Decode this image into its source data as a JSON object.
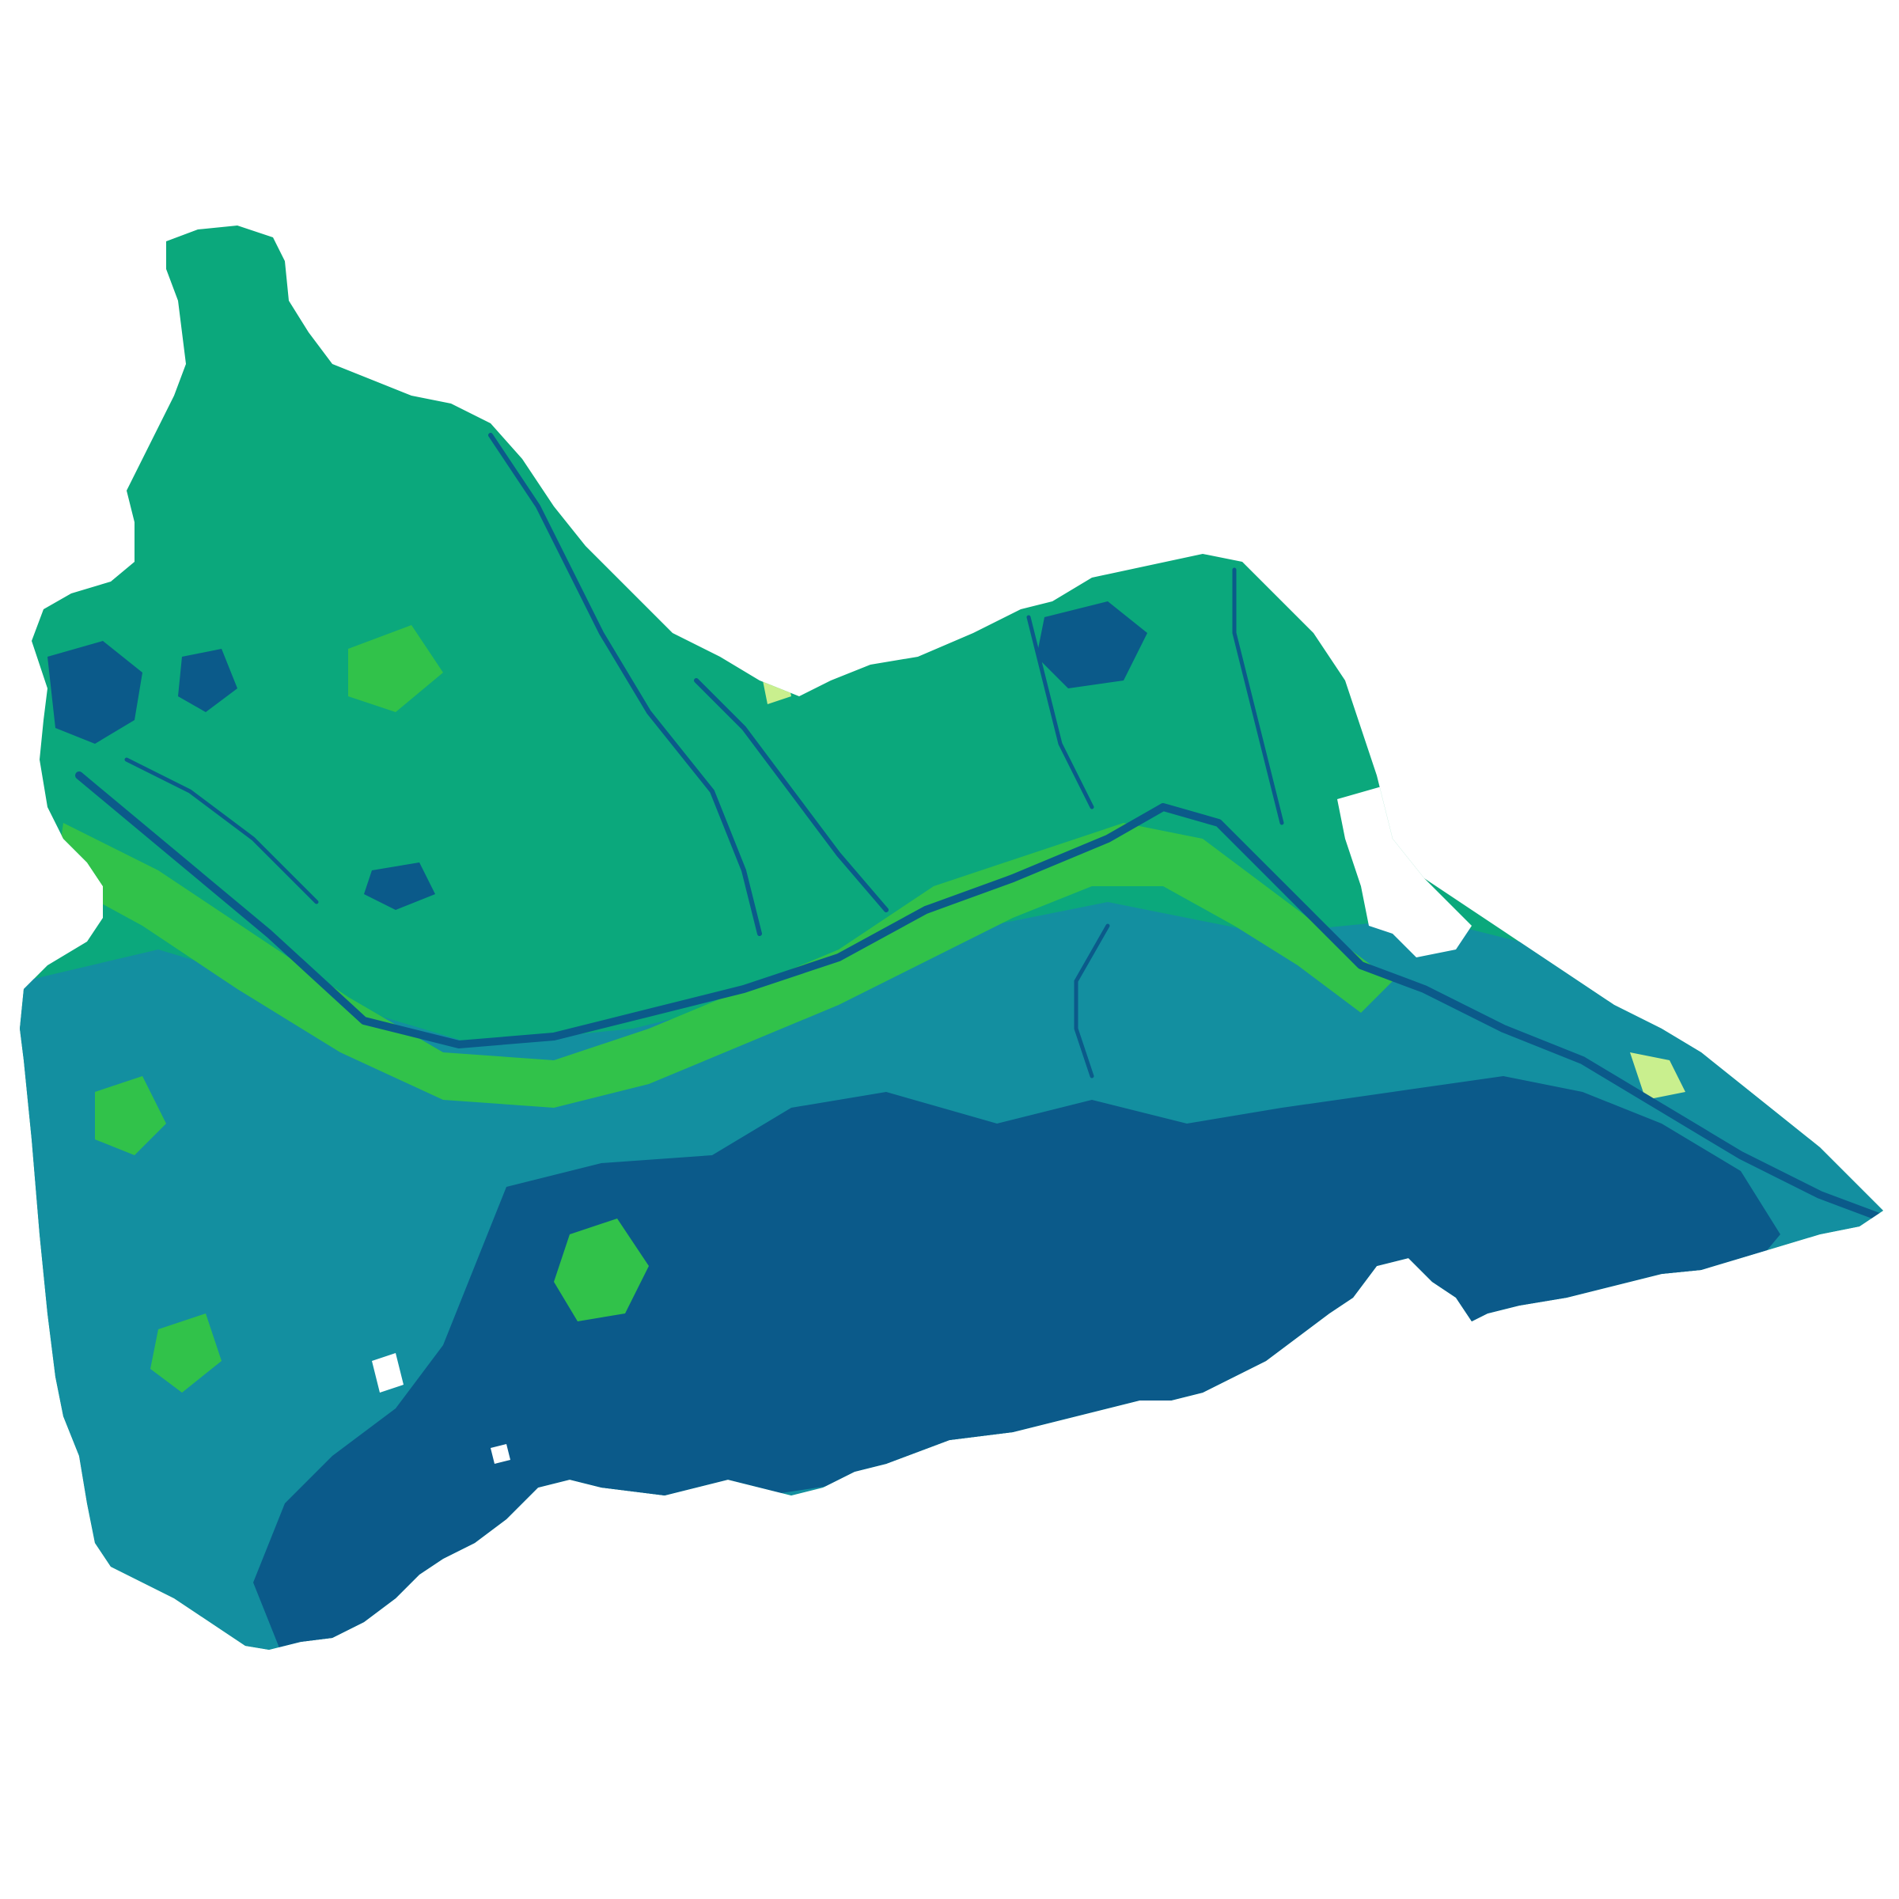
{
  "map": {
    "palette": {
      "class_1": "#0b5a8a",
      "class_2": "#138fa0",
      "class_3": "#0ba87c",
      "class_4": "#31c24a",
      "class_5": "#c9ef8e",
      "background": "#ffffff"
    },
    "legend": [],
    "title": ""
  }
}
